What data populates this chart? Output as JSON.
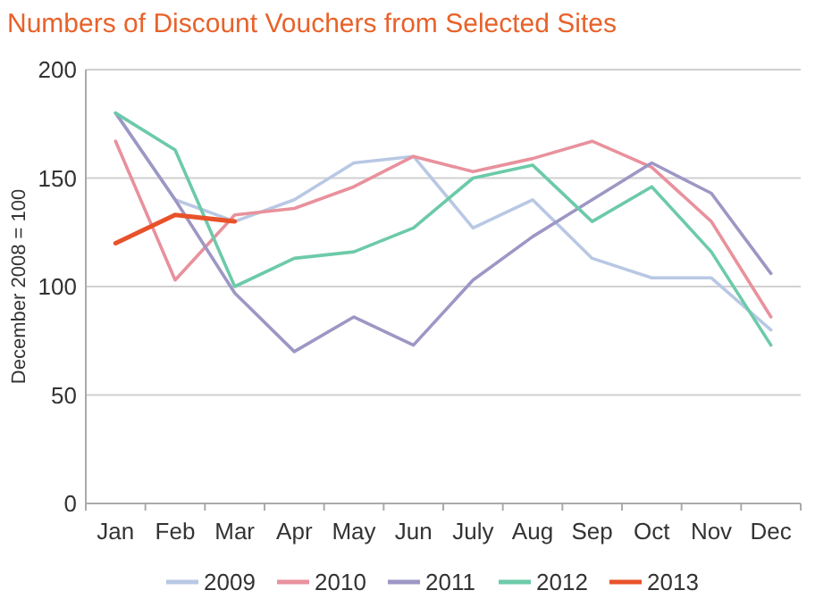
{
  "chart_data": {
    "type": "line",
    "title": "Numbers of Discount Vouchers from Selected Sites",
    "ylabel": "December 2008 = 100",
    "categories": [
      "Jan",
      "Feb",
      "Mar",
      "Apr",
      "May",
      "Jun",
      "July",
      "Aug",
      "Sep",
      "Oct",
      "Nov",
      "Dec"
    ],
    "series": [
      {
        "name": "2009",
        "color": "#b8c8e4",
        "values": [
          180,
          140,
          130,
          140,
          157,
          160,
          127,
          140,
          113,
          104,
          104,
          80
        ]
      },
      {
        "name": "2010",
        "color": "#e8919c",
        "values": [
          167,
          103,
          133,
          136,
          146,
          160,
          153,
          159,
          167,
          155,
          130,
          86
        ]
      },
      {
        "name": "2011",
        "color": "#9c97c4",
        "values": [
          180,
          140,
          97,
          70,
          86,
          73,
          103,
          123,
          140,
          157,
          143,
          106
        ]
      },
      {
        "name": "2012",
        "color": "#6ccaa8",
        "values": [
          180,
          163,
          100,
          113,
          116,
          127,
          150,
          156,
          130,
          146,
          116,
          73
        ]
      },
      {
        "name": "2013",
        "color": "#e8522a",
        "values": [
          120,
          133,
          130,
          null,
          null,
          null,
          null,
          null,
          null,
          null,
          null,
          null
        ]
      }
    ],
    "ylim": [
      0,
      200
    ],
    "yticks": [
      0,
      50,
      100,
      150,
      200
    ],
    "grid": "y",
    "legend": "bottom",
    "marker": "none",
    "line_style": "solid"
  }
}
